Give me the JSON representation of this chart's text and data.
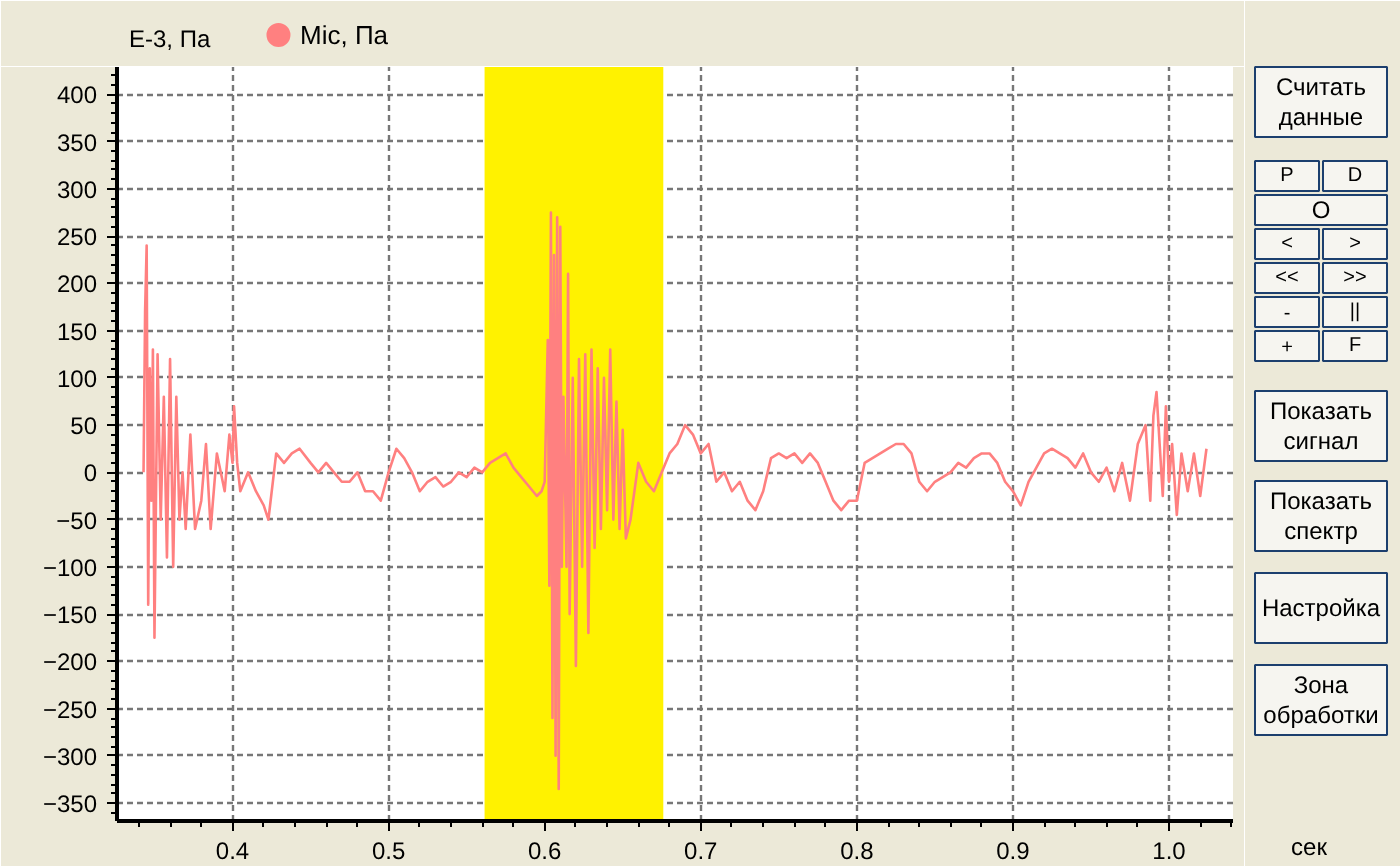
{
  "chart_data": {
    "type": "line",
    "ylabel": "E-3, Па",
    "xlabel": "сек",
    "xlim": [
      0.326,
      1.041
    ],
    "ylim": [
      -369,
      429
    ],
    "xticks": [
      0.4,
      0.5,
      0.6,
      0.7,
      0.8,
      0.9,
      {
        "value": 1.0,
        "label": "1.0"
      }
    ],
    "yticks": [
      -350,
      -300,
      -250,
      -200,
      -150,
      -100,
      -50,
      0,
      50,
      100,
      150,
      200,
      250,
      300,
      350,
      400
    ],
    "grid": true,
    "legend": "top left",
    "marker": "none",
    "line_style": "solid",
    "bands": [
      {
        "axis": "x",
        "from": 0.5615,
        "to": 0.676,
        "color": "#fff200"
      }
    ],
    "annotations": [
      "Считать\nданные",
      "P",
      "D",
      "O",
      "<",
      ">",
      "<<",
      ">>",
      "-",
      "||",
      "+",
      "F",
      "Показать\nсигнал",
      "Показать\nспектр",
      "Настройка",
      "Зона\nобработки"
    ],
    "series": [
      {
        "name": "Mic, Па",
        "color": "#ff8080",
        "x": [
          0.343,
          0.344,
          0.345,
          0.346,
          0.347,
          0.348,
          0.349,
          0.35,
          0.352,
          0.354,
          0.356,
          0.358,
          0.36,
          0.362,
          0.364,
          0.366,
          0.368,
          0.37,
          0.373,
          0.376,
          0.38,
          0.383,
          0.386,
          0.39,
          0.395,
          0.398,
          0.4,
          0.401,
          0.403,
          0.405,
          0.41,
          0.415,
          0.42,
          0.423,
          0.428,
          0.433,
          0.438,
          0.443,
          0.45,
          0.455,
          0.46,
          0.465,
          0.47,
          0.475,
          0.48,
          0.485,
          0.49,
          0.495,
          0.5,
          0.505,
          0.51,
          0.515,
          0.52,
          0.525,
          0.53,
          0.535,
          0.54,
          0.545,
          0.55,
          0.555,
          0.56,
          0.565,
          0.57,
          0.575,
          0.58,
          0.585,
          0.59,
          0.595,
          0.598,
          0.6,
          0.602,
          0.603,
          0.604,
          0.605,
          0.606,
          0.607,
          0.608,
          0.609,
          0.61,
          0.611,
          0.612,
          0.614,
          0.615,
          0.616,
          0.618,
          0.62,
          0.622,
          0.624,
          0.626,
          0.628,
          0.63,
          0.632,
          0.634,
          0.636,
          0.638,
          0.64,
          0.642,
          0.644,
          0.646,
          0.648,
          0.65,
          0.652,
          0.655,
          0.66,
          0.665,
          0.67,
          0.675,
          0.68,
          0.685,
          0.69,
          0.695,
          0.7,
          0.705,
          0.71,
          0.715,
          0.72,
          0.725,
          0.73,
          0.735,
          0.74,
          0.745,
          0.75,
          0.755,
          0.76,
          0.765,
          0.77,
          0.775,
          0.78,
          0.785,
          0.79,
          0.795,
          0.8,
          0.805,
          0.81,
          0.815,
          0.82,
          0.825,
          0.83,
          0.835,
          0.84,
          0.845,
          0.85,
          0.855,
          0.86,
          0.865,
          0.87,
          0.875,
          0.88,
          0.885,
          0.89,
          0.895,
          0.9,
          0.905,
          0.91,
          0.915,
          0.92,
          0.925,
          0.93,
          0.935,
          0.94,
          0.945,
          0.95,
          0.955,
          0.96,
          0.965,
          0.97,
          0.975,
          0.98,
          0.985,
          0.988,
          0.99,
          0.992,
          0.994,
          0.996,
          0.998,
          1.0,
          1.002,
          1.005,
          1.008,
          1.012,
          1.016,
          1.02,
          1.024
        ],
        "values": [
          0,
          170,
          240,
          -140,
          110,
          -30,
          130,
          -175,
          125,
          -50,
          80,
          -90,
          120,
          -100,
          80,
          -50,
          0,
          -60,
          40,
          -60,
          -30,
          30,
          -60,
          20,
          -20,
          40,
          10,
          70,
          10,
          -20,
          0,
          -20,
          -35,
          -50,
          20,
          10,
          20,
          25,
          10,
          0,
          10,
          0,
          -10,
          -10,
          0,
          -20,
          -20,
          -30,
          0,
          25,
          15,
          0,
          -20,
          -10,
          -5,
          -15,
          -10,
          0,
          -5,
          5,
          0,
          10,
          15,
          20,
          5,
          -5,
          -15,
          -25,
          -20,
          -10,
          140,
          -120,
          275,
          -260,
          230,
          -300,
          270,
          -335,
          260,
          -100,
          80,
          -100,
          210,
          -150,
          100,
          -205,
          120,
          -100,
          125,
          -170,
          130,
          -80,
          110,
          -60,
          100,
          -40,
          130,
          -50,
          75,
          -60,
          45,
          -70,
          -50,
          10,
          -10,
          -20,
          0,
          20,
          30,
          50,
          40,
          20,
          30,
          -10,
          0,
          -20,
          -10,
          -30,
          -40,
          -20,
          15,
          20,
          15,
          20,
          10,
          20,
          10,
          -10,
          -30,
          -40,
          -30,
          -30,
          10,
          15,
          20,
          25,
          30,
          30,
          20,
          -10,
          -20,
          -10,
          -5,
          0,
          10,
          5,
          15,
          20,
          20,
          10,
          -10,
          -20,
          -35,
          -10,
          5,
          20,
          25,
          20,
          15,
          5,
          20,
          0,
          -10,
          5,
          -20,
          10,
          -30,
          30,
          50,
          -30,
          60,
          85,
          30,
          -25,
          70,
          -10,
          30,
          -45,
          20,
          -20,
          20,
          -25,
          25
        ]
      }
    ]
  }
}
